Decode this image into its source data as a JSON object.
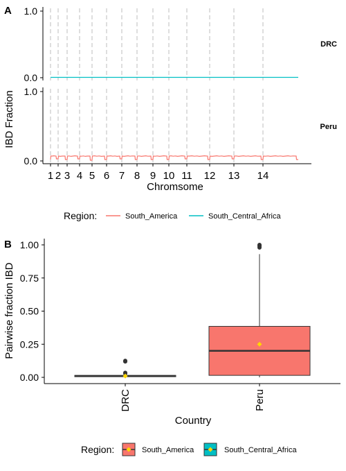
{
  "chart_data": [
    {
      "panel": "A",
      "type": "line",
      "ylabel": "IBD Fraction",
      "xlabel": "Chromsome",
      "x_ticks": [
        "1",
        "2",
        "3",
        "4",
        "5",
        "6",
        "7",
        "8",
        "9",
        "10",
        "11",
        "12",
        "13",
        "14"
      ],
      "facets": [
        {
          "label": "DRC",
          "ylim": [
            0,
            1
          ],
          "y_ticks": [
            "0.0",
            "1.0"
          ],
          "series": "South_Central_Africa",
          "level": 0.005,
          "dips": []
        },
        {
          "label": "Peru",
          "ylim": [
            0,
            1
          ],
          "y_ticks": [
            "0.0",
            "1.0"
          ],
          "series": "South_America",
          "level": 0.07,
          "dips": [
            0.02,
            0.03,
            0.02,
            0.03,
            0.01,
            0.02,
            0.03,
            0.02,
            0.02,
            0.02,
            0.03,
            0.02,
            0.03,
            0.02
          ]
        }
      ],
      "legend": {
        "title": "Region:",
        "placement": "bottom",
        "items": [
          {
            "name": "South_America",
            "color": "#F8766D"
          },
          {
            "name": "South_Central_Africa",
            "color": "#00BFC4"
          }
        ]
      }
    },
    {
      "panel": "B",
      "type": "boxplot",
      "ylabel": "Pairwise fraction IBD",
      "xlabel": "Country",
      "categories": [
        "DRC",
        "Peru"
      ],
      "ylim": [
        0,
        1
      ],
      "y_ticks": [
        "0.00",
        "0.25",
        "0.50",
        "0.75",
        "1.00"
      ],
      "boxes": [
        {
          "category": "DRC",
          "region": "South_Central_Africa",
          "q1": 0.005,
          "median": 0.01,
          "q3": 0.015,
          "whisker_low": 0.0,
          "whisker_high": 0.02,
          "mean": 0.01,
          "outliers": [
            0.03,
            0.035,
            0.12,
            0.125
          ]
        },
        {
          "category": "Peru",
          "region": "South_America",
          "q1": 0.015,
          "median": 0.2,
          "q3": 0.385,
          "whisker_low": 0.0,
          "whisker_high": 0.93,
          "mean": 0.25,
          "outliers": [
            0.98,
            0.99,
            1.0,
            0.995
          ]
        }
      ],
      "legend": {
        "title": "Region:",
        "placement": "bottom",
        "items": [
          {
            "name": "South_America",
            "color": "#F8766D"
          },
          {
            "name": "South_Central_Africa",
            "color": "#00BFC4"
          }
        ]
      }
    }
  ]
}
